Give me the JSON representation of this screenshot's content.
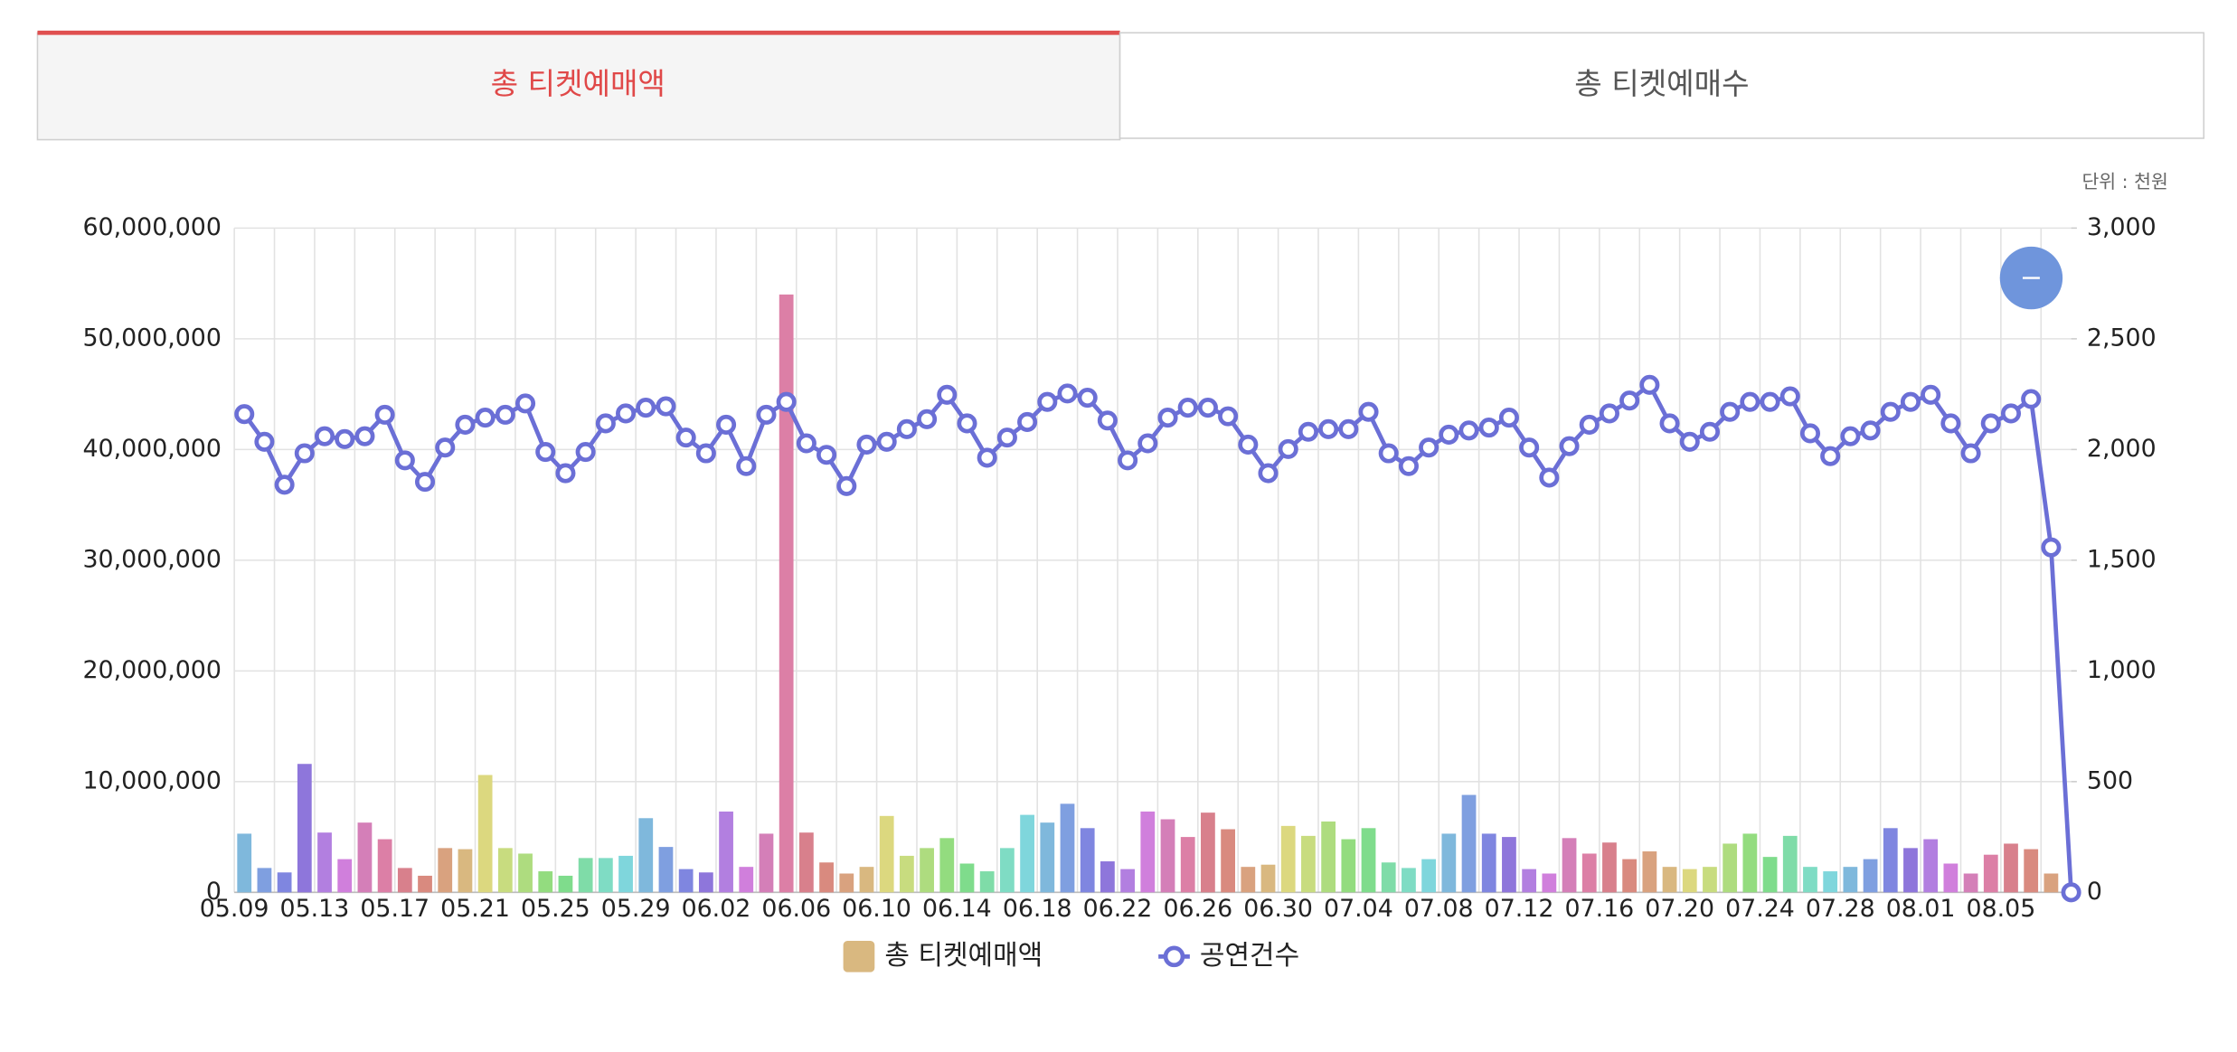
{
  "tabs": [
    "총 티켓예매액",
    "총 티켓예매수"
  ],
  "unit": "단위 : 천원",
  "chart_data": {
    "type": "bar",
    "categories": [
      "05.09",
      null,
      null,
      null,
      "05.13",
      null,
      null,
      null,
      "05.17",
      null,
      null,
      null,
      "05.21",
      null,
      null,
      null,
      "05.25",
      null,
      null,
      null,
      "05.29",
      null,
      null,
      null,
      "06.02",
      null,
      null,
      null,
      "06.06",
      null,
      null,
      null,
      "06.10",
      null,
      null,
      null,
      "06.14",
      null,
      null,
      null,
      "06.18",
      null,
      null,
      null,
      "06.22",
      null,
      null,
      null,
      "06.26",
      null,
      null,
      null,
      "06.30",
      null,
      null,
      null,
      "07.04",
      null,
      null,
      null,
      "07.08",
      null,
      null,
      null,
      "07.12",
      null,
      null,
      null,
      "07.16",
      null,
      null,
      null,
      "07.20",
      null,
      null,
      null,
      "07.24",
      null,
      null,
      null,
      "07.28",
      null,
      null,
      null,
      "08.01",
      null,
      null,
      null,
      "08.05",
      null,
      null,
      null
    ],
    "series": [
      {
        "name": "총 티켓예매액",
        "type": "bar",
        "color": "#d9b880",
        "colors": [
          "#7fb8dc",
          "#7f9fe0",
          "#7f86e0",
          "#8e76db",
          "#b27fe0",
          "#d07fdc",
          "#d47fb8",
          "#dc7fa6",
          "#d8808c",
          "#d98a7f",
          "#d9a27f",
          "#d9b880",
          "#dcd87f",
          "#c8dc7f",
          "#aedc7f",
          "#93dc7f",
          "#7fdc8c",
          "#7fdca8",
          "#7fdcc4",
          "#7fd6dc"
        ],
        "values": [
          5300000,
          2200000,
          1800000,
          11600000,
          5400000,
          3000000,
          6300000,
          4800000,
          2200000,
          1500000,
          4000000,
          3900000,
          10600000,
          4000000,
          3500000,
          1900000,
          1500000,
          3100000,
          3100000,
          3300000,
          6700000,
          4100000,
          2100000,
          1800000,
          7300000,
          2300000,
          5300000,
          54000000,
          5400000,
          2700000,
          1700000,
          2300000,
          6900000,
          3300000,
          4000000,
          4900000,
          2600000,
          1900000,
          4000000,
          7000000,
          6300000,
          8000000,
          5800000,
          2800000,
          2100000,
          7300000,
          6600000,
          5000000,
          7200000,
          5700000,
          2300000,
          2500000,
          6000000,
          5100000,
          6400000,
          4800000,
          5800000,
          2700000,
          2200000,
          3000000,
          5300000,
          8800000,
          5300000,
          5000000,
          2100000,
          1700000,
          4900000,
          3500000,
          4500000,
          3000000,
          3700000,
          2300000,
          2100000,
          2300000,
          4400000,
          5300000,
          3200000,
          5100000,
          2300000,
          1900000,
          2300000,
          3000000,
          5800000,
          4000000,
          4800000,
          2600000,
          1700000,
          3400000,
          4400000,
          3900000,
          1700000,
          0
        ]
      },
      {
        "name": "공연건수",
        "type": "line",
        "axis": "y2",
        "color": "#6b6fd6",
        "values": [
          2160,
          2035,
          1841,
          1983,
          2060,
          2047,
          2060,
          2157,
          1951,
          1854,
          2009,
          2112,
          2144,
          2157,
          2208,
          1989,
          1893,
          1989,
          2118,
          2163,
          2189,
          2195,
          2054,
          1983,
          2112,
          1925,
          2157,
          2215,
          2028,
          1976,
          1835,
          2022,
          2035,
          2092,
          2137,
          2247,
          2118,
          1963,
          2054,
          2124,
          2215,
          2253,
          2234,
          2131,
          1951,
          2028,
          2144,
          2189,
          2189,
          2150,
          2022,
          1893,
          2002,
          2080,
          2092,
          2092,
          2170,
          1983,
          1925,
          2009,
          2067,
          2086,
          2099,
          2144,
          2009,
          1873,
          2015,
          2112,
          2163,
          2221,
          2292,
          2118,
          2035,
          2080,
          2170,
          2215,
          2215,
          2240,
          2073,
          1970,
          2060,
          2086,
          2170,
          2215,
          2247,
          2118,
          1983,
          2118,
          2163,
          2228,
          1558,
          0
        ]
      }
    ],
    "ylim": [
      0,
      60000000
    ],
    "yticks": [
      0,
      {
        "value": 10000000,
        "label": "10,000,000"
      },
      {
        "value": 20000000,
        "label": "20,000,000"
      },
      {
        "value": 30000000,
        "label": "30,000,000"
      },
      {
        "value": 40000000,
        "label": "40,000,000"
      },
      {
        "value": 50000000,
        "label": "50,000,000"
      },
      {
        "value": 60000000,
        "label": "60,000,000"
      }
    ],
    "y2lim": [
      0,
      3000
    ],
    "y2ticks": [
      0,
      500,
      {
        "value": 1000,
        "label": "1,000"
      },
      {
        "value": 1500,
        "label": "1,500"
      },
      {
        "value": 2000,
        "label": "2,000"
      },
      {
        "value": 2500,
        "label": "2,500"
      },
      {
        "value": 3000,
        "label": "3,000"
      }
    ],
    "grid": true
  }
}
